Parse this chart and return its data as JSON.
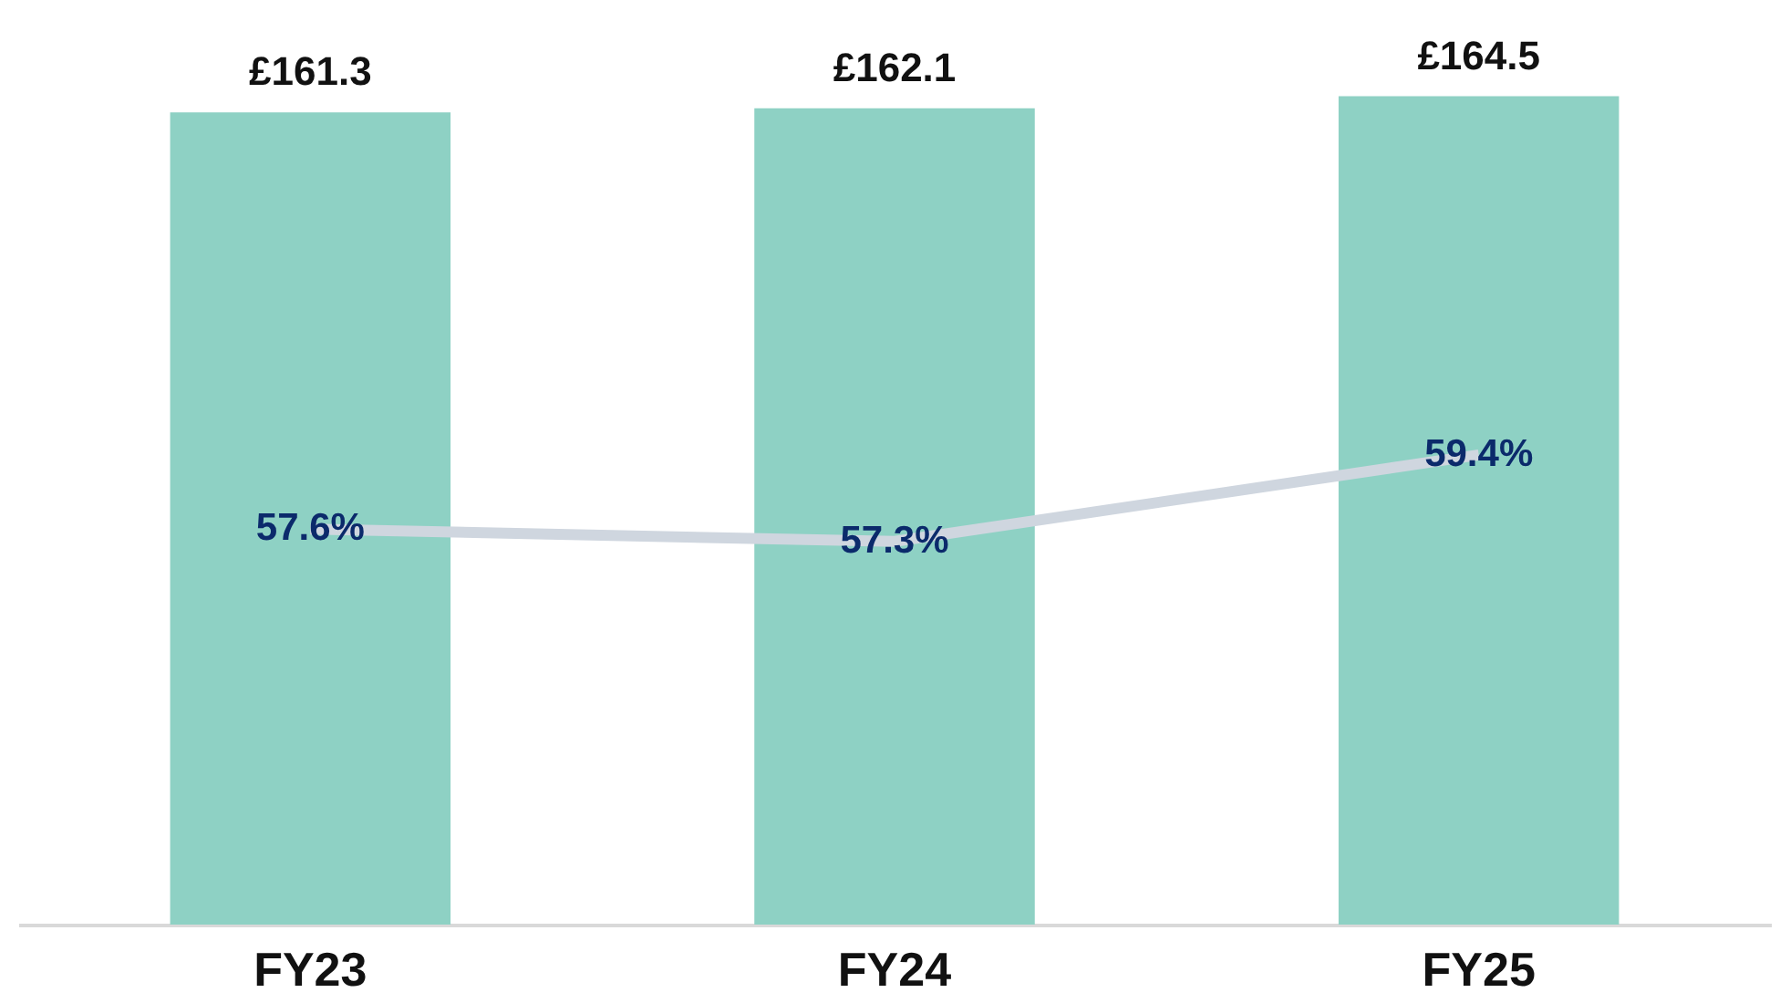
{
  "chart_data": {
    "type": "bar",
    "categories": [
      "FY23",
      "FY24",
      "FY25"
    ],
    "series": [
      {
        "color": "#8ed1c4",
        "values": [
          161.3,
          162.1,
          164.5
        ],
        "value_labels": [
          "£161.3",
          "£162.1",
          "£164.5"
        ]
      },
      {
        "type": "line",
        "axis": "y2",
        "color": "#cfd6df",
        "values": [
          57.6,
          57.3,
          59.4
        ],
        "value_labels": [
          "57.6%",
          "57.3%",
          "59.4%"
        ]
      }
    ],
    "tick_labels": "x",
    "grid": false,
    "marker": "none"
  }
}
